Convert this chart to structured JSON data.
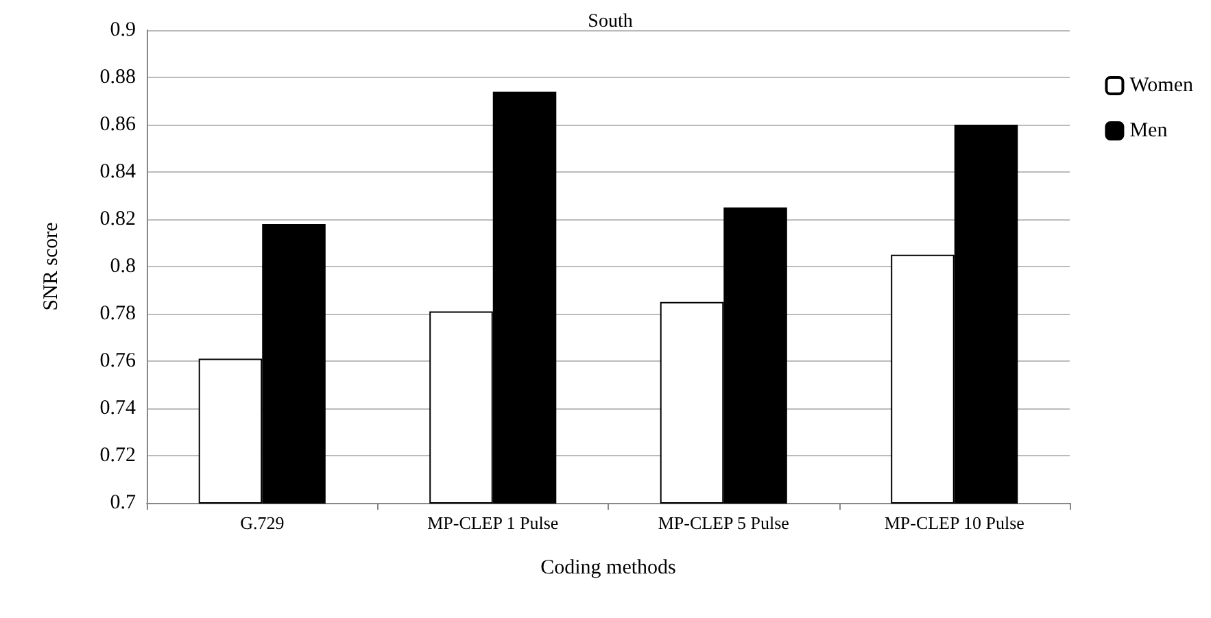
{
  "chart_data": {
    "type": "bar",
    "title": "South",
    "xlabel": "Coding methods",
    "ylabel": "SNR score",
    "categories": [
      "G.729",
      "MP-CLEP 1 Pulse",
      "MP-CLEP 5 Pulse",
      "MP-CLEP 10 Pulse"
    ],
    "series": [
      {
        "name": "Women",
        "color": "#ffffff",
        "values": [
          0.761,
          0.781,
          0.785,
          0.805
        ]
      },
      {
        "name": "Men",
        "color": "#000000",
        "values": [
          0.818,
          0.874,
          0.825,
          0.86
        ]
      }
    ],
    "ylim": [
      0.7,
      0.9
    ],
    "yticks": [
      0.7,
      0.72,
      0.74,
      0.76,
      0.78,
      0.8,
      0.82,
      0.84,
      0.86,
      0.88,
      0.9
    ],
    "grid": "y",
    "legend": "right"
  }
}
